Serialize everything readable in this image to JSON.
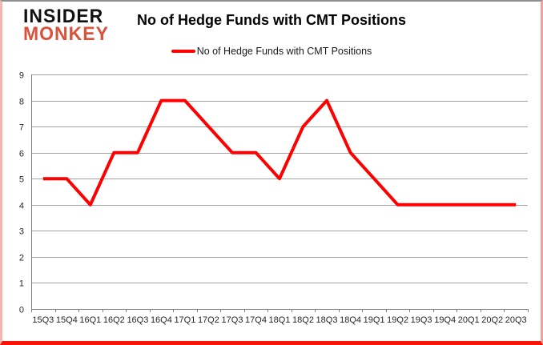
{
  "logo": {
    "line1": "INSIDER",
    "line2": "MONKEY"
  },
  "header": {
    "title": "No of Hedge Funds with CMT Positions"
  },
  "legend": {
    "label": "No of Hedge Funds with CMT Positions",
    "swatch_color": "#ff0000"
  },
  "chart_data": {
    "type": "line",
    "title": "No of Hedge Funds with CMT Positions",
    "categories": [
      "15Q3",
      "15Q4",
      "16Q1",
      "16Q2",
      "16Q3",
      "16Q4",
      "17Q1",
      "17Q2",
      "17Q3",
      "17Q4",
      "18Q1",
      "18Q2",
      "18Q3",
      "18Q4",
      "19Q1",
      "19Q2",
      "19Q3",
      "19Q4",
      "20Q1",
      "20Q2",
      "20Q3"
    ],
    "values": [
      5,
      5,
      4,
      6,
      6,
      8,
      8,
      7,
      6,
      6,
      5,
      7,
      8,
      6,
      5,
      4,
      4,
      4,
      4,
      4,
      4
    ],
    "xlabel": "",
    "ylabel": "",
    "ylim": [
      0,
      9
    ],
    "yticks": [
      0,
      1,
      2,
      3,
      4,
      5,
      6,
      7,
      8,
      9
    ],
    "grid": true,
    "legend_position": "top",
    "line_color": "#ff0000",
    "grid_color": "#a3a3a3",
    "axis_color": "#7f7f7f"
  }
}
